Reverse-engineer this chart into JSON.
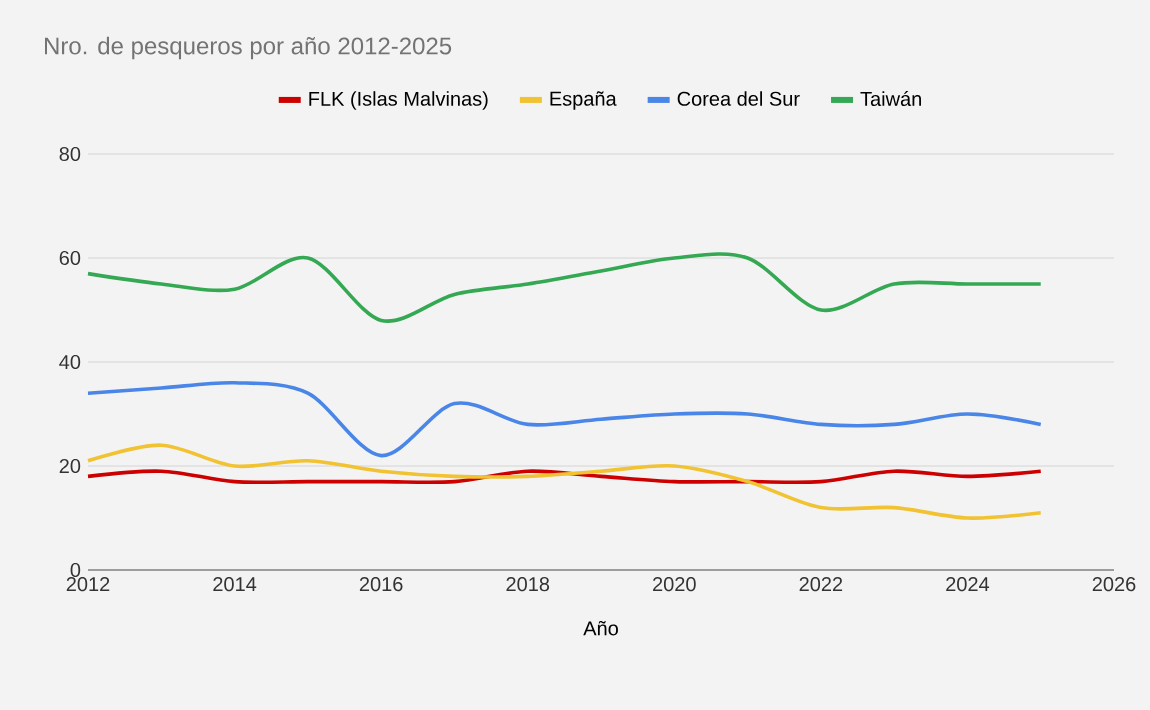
{
  "chart_data": {
    "type": "line",
    "title": "Nro. de pesqueros por año 2012-2025",
    "xlabel": "Año",
    "x": [
      2012,
      2013,
      2014,
      2015,
      2016,
      2017,
      2018,
      2019,
      2020,
      2021,
      2022,
      2023,
      2024,
      2025
    ],
    "series": [
      {
        "name": "FLK (Islas Malvinas)",
        "color": "#cc0000",
        "values": [
          18,
          19,
          17,
          17,
          17,
          17,
          19,
          18,
          17,
          17,
          17,
          19,
          18,
          19
        ]
      },
      {
        "name": "España",
        "color": "#f1c232",
        "values": [
          21,
          24,
          20,
          21,
          19,
          18,
          18,
          19,
          20,
          17,
          12,
          12,
          10,
          11
        ]
      },
      {
        "name": "Corea del Sur",
        "color": "#4a86e8",
        "values": [
          34,
          35,
          36,
          34,
          22,
          32,
          28,
          29,
          30,
          30,
          28,
          28,
          30,
          28
        ]
      },
      {
        "name": "Taiwán",
        "color": "#34a853",
        "values": [
          57,
          55,
          54,
          60,
          48,
          53,
          55,
          57.5,
          60,
          60,
          50,
          55,
          55,
          55
        ]
      }
    ],
    "xlim": [
      2012,
      2026
    ],
    "xticks": [
      2012,
      2014,
      2016,
      2018,
      2020,
      2022,
      2024,
      2026
    ],
    "ylim": [
      0,
      80
    ],
    "yticks": [
      0,
      20,
      40,
      60,
      80
    ],
    "grid": "y",
    "legend": "top"
  }
}
